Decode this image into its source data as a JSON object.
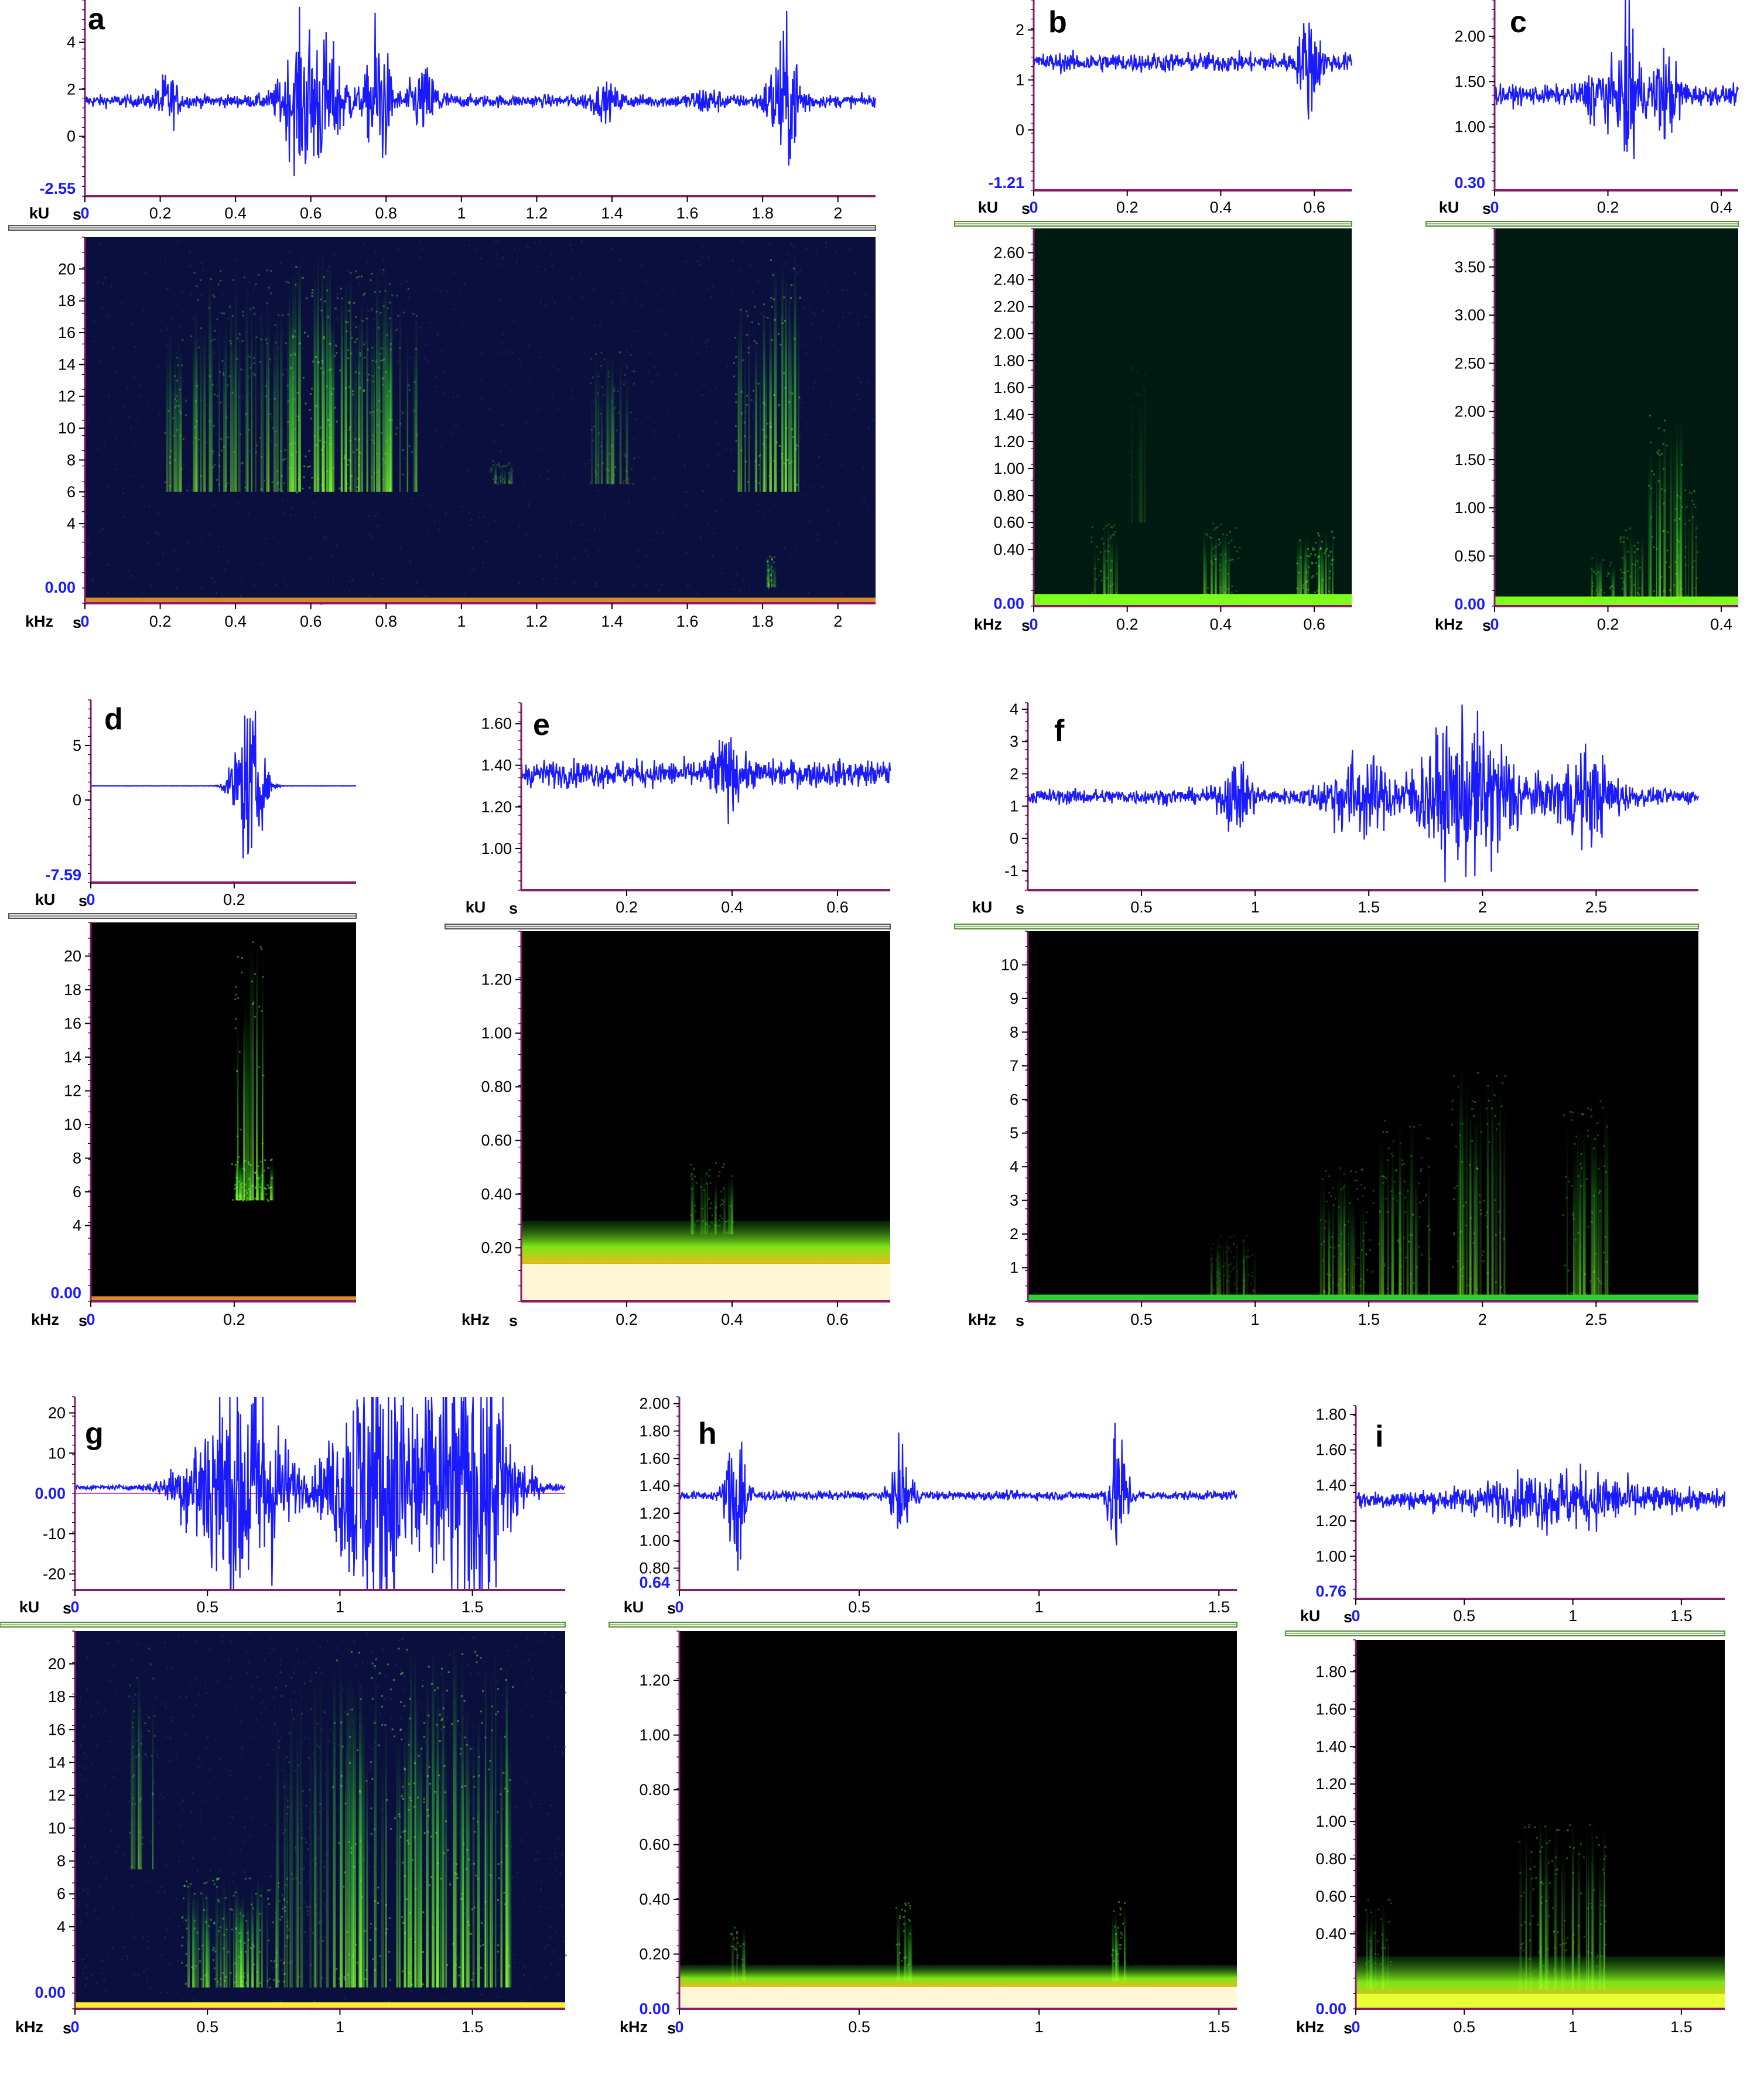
{
  "chart_data": [
    {
      "panel": "a",
      "type": "line",
      "wave": {
        "unit": "kU",
        "ylim": [
          -2.55,
          5.8
        ],
        "yticks": [
          "4",
          "2",
          "0"
        ],
        "ymin_label": "-2.55",
        "baseline": 1.5,
        "noise": 0.25,
        "bursts": [
          [
            0.22,
            0.02,
            1.0
          ],
          [
            0.58,
            0.04,
            2.6
          ],
          [
            0.65,
            0.04,
            1.6
          ],
          [
            0.78,
            0.02,
            3.4
          ],
          [
            0.9,
            0.03,
            1.2
          ],
          [
            1.38,
            0.03,
            0.5
          ],
          [
            1.65,
            0.03,
            0.4
          ],
          [
            1.86,
            0.03,
            2.6
          ]
        ]
      },
      "spec": {
        "unit": "kHz",
        "ylim": [
          -1,
          22
        ],
        "yticks": [
          "20",
          "18",
          "16",
          "14",
          "12",
          "10",
          "8",
          "6",
          "4"
        ],
        "zero_label": "0.00",
        "bg": "#0b0f3d",
        "floor_color": "#d98a2b",
        "floor_height": 0.35,
        "columns": [
          [
            0.24,
            0.03,
            6,
            16,
            0.6
          ],
          [
            0.42,
            0.14,
            6,
            20,
            0.6
          ],
          [
            0.6,
            0.06,
            6,
            21,
            0.9
          ],
          [
            0.68,
            0.06,
            6,
            20,
            0.8
          ],
          [
            0.75,
            0.06,
            6,
            20,
            0.7
          ],
          [
            0.82,
            0.06,
            6,
            19,
            0.6
          ],
          [
            1.1,
            0.03,
            6.5,
            8,
            0.4
          ],
          [
            1.4,
            0.06,
            6.5,
            15,
            0.4
          ],
          [
            1.77,
            0.05,
            6,
            18,
            0.7
          ],
          [
            1.86,
            0.04,
            6,
            21,
            0.9
          ],
          [
            1.82,
            0.01,
            0,
            2,
            0.6
          ]
        ]
      },
      "x": {
        "unit": "s",
        "max": 2.1,
        "ticks": [
          0,
          0.2,
          0.4,
          0.6,
          0.8,
          1,
          1.2,
          1.4,
          1.6,
          1.8,
          2
        ],
        "labels": [
          "0",
          "0.2",
          "0.4",
          "0.6",
          "0.8",
          "1",
          "1.2",
          "1.4",
          "1.6",
          "1.8",
          "2"
        ]
      }
    },
    {
      "panel": "b",
      "type": "line",
      "wave": {
        "unit": "kU",
        "ylim": [
          -1.21,
          2.6
        ],
        "yticks": [
          "2",
          "1",
          "0"
        ],
        "ymin_label": "-1.21",
        "baseline": 1.35,
        "noise": 0.18,
        "bursts": [
          [
            0.59,
            0.015,
            0.9
          ]
        ]
      },
      "spec": {
        "unit": "kHz",
        "ylim": [
          -0.02,
          2.78
        ],
        "yticks": [
          "2.60",
          "2.40",
          "2.20",
          "2.00",
          "1.80",
          "1.60",
          "1.40",
          "1.20",
          "1.00",
          "0.80",
          "0.60",
          "0.40"
        ],
        "zero_label": "0.00",
        "bg": "#001a12",
        "floor_color": "#7cff1a",
        "floor_height": 0.09,
        "columns": [
          [
            0.15,
            0.03,
            0.05,
            0.6,
            0.5
          ],
          [
            0.4,
            0.04,
            0.05,
            0.6,
            0.5
          ],
          [
            0.6,
            0.04,
            0.05,
            0.55,
            0.8
          ],
          [
            0.22,
            0.02,
            0.6,
            1.8,
            0.15
          ]
        ]
      },
      "x": {
        "unit": "s",
        "max": 0.68,
        "ticks": [
          0,
          0.2,
          0.4,
          0.6
        ],
        "labels": [
          "0",
          "0.2",
          "0.4",
          "0.6"
        ]
      }
    },
    {
      "panel": "c",
      "type": "line",
      "wave": {
        "unit": "kU",
        "ylim": [
          0.3,
          2.4
        ],
        "yticks": [
          "2.00",
          "1.50",
          "1.00"
        ],
        "ymin_label": "0.30",
        "baseline": 1.35,
        "noise": 0.1,
        "bursts": [
          [
            0.24,
            0.01,
            1.0
          ],
          [
            0.19,
            0.02,
            0.3
          ],
          [
            0.3,
            0.02,
            0.4
          ]
        ]
      },
      "spec": {
        "unit": "kHz",
        "ylim": [
          -0.02,
          3.9
        ],
        "yticks": [
          "3.50",
          "3.00",
          "2.50",
          "2.00",
          "1.50",
          "1.00",
          "0.50"
        ],
        "zero_label": "0.00",
        "bg": "#001a12",
        "floor_color": "#7cff1a",
        "floor_height": 0.1,
        "columns": [
          [
            0.19,
            0.02,
            0.05,
            0.55,
            0.5
          ],
          [
            0.24,
            0.02,
            0.05,
            0.8,
            0.6
          ],
          [
            0.3,
            0.03,
            0.05,
            2.0,
            0.7
          ],
          [
            0.34,
            0.02,
            0.05,
            1.2,
            0.5
          ]
        ]
      },
      "x": {
        "unit": "s",
        "max": 0.43,
        "ticks": [
          0,
          0.2,
          0.4
        ],
        "labels": [
          "0",
          "0.2",
          "0.4"
        ]
      }
    },
    {
      "panel": "d",
      "type": "line",
      "wave": {
        "unit": "kU",
        "ylim": [
          -7.59,
          9.2
        ],
        "yticks": [
          "5",
          "0"
        ],
        "ymin_label": "-7.59",
        "baseline": 1.3,
        "noise": 0.02,
        "bursts": [
          [
            0.22,
            0.015,
            7.0
          ]
        ]
      },
      "spec": {
        "unit": "kHz",
        "ylim": [
          -0.5,
          22
        ],
        "yticks": [
          "20",
          "18",
          "16",
          "14",
          "12",
          "10",
          "8",
          "6",
          "4"
        ],
        "zero_label": "0.00",
        "bg": "#000000",
        "floor_color": "#d98a2b",
        "floor_height": 0.3,
        "columns": [
          [
            0.22,
            0.02,
            5.5,
            21,
            0.9
          ],
          [
            0.225,
            0.03,
            5.5,
            8,
            1.0
          ]
        ]
      },
      "x": {
        "unit": "s",
        "max": 0.37,
        "ticks": [
          0,
          0.2
        ],
        "labels": [
          "0",
          "0.2"
        ]
      }
    },
    {
      "panel": "e",
      "type": "line",
      "wave": {
        "unit": "kU",
        "ylim": [
          0.8,
          1.7
        ],
        "yticks": [
          "1.60",
          "1.40",
          "1.20",
          "1.00"
        ],
        "ymin_label": "",
        "baseline": 1.36,
        "noise": 0.06,
        "bursts": [
          [
            0.39,
            0.02,
            0.12
          ]
        ]
      },
      "spec": {
        "unit": "kHz",
        "ylim": [
          0.0,
          1.38
        ],
        "yticks": [
          "1.20",
          "1.00",
          "0.80",
          "0.60",
          "0.40",
          "0.20"
        ],
        "zero_label": "",
        "bg": "#000000",
        "floor_color": "#fff7d6",
        "floor_height": 0.14,
        "band": [
          0.14,
          0.3
        ],
        "columns": [
          [
            0.36,
            0.04,
            0.25,
            0.52,
            0.6
          ]
        ]
      },
      "x": {
        "unit": "s",
        "max": 0.7,
        "ticks": [
          0.2,
          0.4,
          0.6
        ],
        "labels": [
          "0.2",
          "0.4",
          "0.6"
        ]
      }
    },
    {
      "panel": "f",
      "type": "line",
      "wave": {
        "unit": "kU",
        "ylim": [
          -1.6,
          4.2
        ],
        "yticks": [
          "4",
          "3",
          "2",
          "1",
          "0",
          "-1"
        ],
        "ymin_label": "",
        "baseline": 1.3,
        "noise": 0.22,
        "bursts": [
          [
            0.92,
            0.05,
            0.9
          ],
          [
            1.45,
            0.1,
            1.1
          ],
          [
            1.85,
            0.12,
            1.6
          ],
          [
            2.05,
            0.1,
            1.4
          ],
          [
            2.45,
            0.1,
            1.2
          ]
        ]
      },
      "spec": {
        "unit": "kHz",
        "ylim": [
          0.0,
          11
        ],
        "yticks": [
          "10",
          "9",
          "8",
          "7",
          "6",
          "5",
          "4",
          "3",
          "2",
          "1"
        ],
        "zero_label": "",
        "bg": "#000000",
        "floor_color": "#2fd12f",
        "floor_height": 0.2,
        "columns": [
          [
            1.4,
            0.12,
            0.2,
            4,
            0.5
          ],
          [
            1.65,
            0.12,
            0.2,
            5.5,
            0.5
          ],
          [
            1.98,
            0.12,
            0.2,
            7,
            0.6
          ],
          [
            2.45,
            0.1,
            0.2,
            6,
            0.6
          ],
          [
            0.9,
            0.1,
            0.2,
            2,
            0.3
          ]
        ]
      },
      "x": {
        "unit": "s",
        "max": 2.95,
        "ticks": [
          0.5,
          1,
          1.5,
          2,
          2.5
        ],
        "labels": [
          "0.5",
          "1",
          "1.5",
          "2",
          "2.5"
        ]
      }
    },
    {
      "panel": "g",
      "type": "line",
      "wave": {
        "unit": "kU",
        "ylim": [
          -24,
          24
        ],
        "yticks": [
          "20",
          "10",
          "-10",
          "-20"
        ],
        "zero_label": "0.00",
        "ymin_label": "",
        "baseline": 1.5,
        "noise": 0.5,
        "bursts": [
          [
            0.55,
            0.1,
            22
          ],
          [
            0.7,
            0.08,
            20
          ],
          [
            1.1,
            0.1,
            25
          ],
          [
            1.35,
            0.15,
            25
          ],
          [
            1.55,
            0.08,
            24
          ]
        ]
      },
      "spec": {
        "unit": "kHz",
        "ylim": [
          -1,
          22
        ],
        "yticks": [
          "20",
          "18",
          "16",
          "14",
          "12",
          "10",
          "8",
          "6",
          "4"
        ],
        "zero_label": "0.00",
        "bg": "#0b0f3d",
        "floor_color": "#ffee33",
        "floor_height": 0.4,
        "columns": [
          [
            0.25,
            0.05,
            7.5,
            21,
            0.5
          ],
          [
            0.6,
            0.2,
            0.3,
            7,
            0.8
          ],
          [
            0.85,
            0.1,
            0.3,
            20,
            0.4
          ],
          [
            1.12,
            0.15,
            0.3,
            21,
            0.9
          ],
          [
            1.35,
            0.12,
            0.3,
            21,
            1.0
          ],
          [
            1.55,
            0.1,
            0.3,
            21,
            0.9
          ]
        ]
      },
      "x": {
        "unit": "s",
        "max": 1.85,
        "ticks": [
          0,
          0.5,
          1,
          1.5
        ],
        "labels": [
          "0",
          "0.5",
          "1",
          "1.5"
        ]
      }
    },
    {
      "panel": "h",
      "type": "line",
      "wave": {
        "unit": "kU",
        "ylim": [
          0.64,
          2.05
        ],
        "yticks": [
          "2.00",
          "1.80",
          "1.60",
          "1.40",
          "1.20",
          "1.00",
          "0.80"
        ],
        "ymin_label": "0.64",
        "baseline": 1.33,
        "noise": 0.03,
        "bursts": [
          [
            0.16,
            0.02,
            0.6
          ],
          [
            0.62,
            0.02,
            0.3
          ],
          [
            1.22,
            0.02,
            0.45
          ]
        ]
      },
      "spec": {
        "unit": "kHz",
        "ylim": [
          0.0,
          1.38
        ],
        "yticks": [
          "1.20",
          "1.00",
          "0.80",
          "0.60",
          "0.40",
          "0.20"
        ],
        "zero_label": "0.00",
        "bg": "#000000",
        "floor_color": "#fff7d6",
        "floor_height": 0.08,
        "band": [
          0.08,
          0.16
        ],
        "columns": [
          [
            0.16,
            0.02,
            0.1,
            0.3,
            0.7
          ],
          [
            0.62,
            0.02,
            0.1,
            0.4,
            0.8
          ],
          [
            1.22,
            0.02,
            0.1,
            0.4,
            0.8
          ]
        ]
      },
      "x": {
        "unit": "s",
        "max": 1.55,
        "ticks": [
          0,
          0.5,
          1,
          1.5
        ],
        "labels": [
          "0",
          "0.5",
          "1",
          "1.5"
        ]
      }
    },
    {
      "panel": "i",
      "type": "line",
      "wave": {
        "unit": "kU",
        "ylim": [
          0.76,
          1.85
        ],
        "yticks": [
          "1.80",
          "1.60",
          "1.40",
          "1.20",
          "1.00"
        ],
        "ymin_label": "0.76",
        "baseline": 1.32,
        "noise": 0.05,
        "bursts": [
          [
            0.95,
            0.25,
            0.12
          ]
        ]
      },
      "spec": {
        "unit": "kHz",
        "ylim": [
          0.0,
          1.97
        ],
        "yticks": [
          "1.80",
          "1.60",
          "1.40",
          "1.20",
          "1.00",
          "0.80",
          "0.60",
          "0.40"
        ],
        "zero_label": "0.00",
        "bg": "#000000",
        "floor_color": "#e8ff33",
        "floor_height": 0.08,
        "band": [
          0.05,
          0.28
        ],
        "columns": [
          [
            0.1,
            0.06,
            0.1,
            0.6,
            0.5
          ],
          [
            0.95,
            0.2,
            0.1,
            1.0,
            0.6
          ]
        ]
      },
      "x": {
        "unit": "s",
        "max": 1.7,
        "ticks": [
          0,
          0.5,
          1,
          1.5
        ],
        "labels": [
          "0",
          "0.5",
          "1",
          "1.5"
        ]
      }
    }
  ]
}
